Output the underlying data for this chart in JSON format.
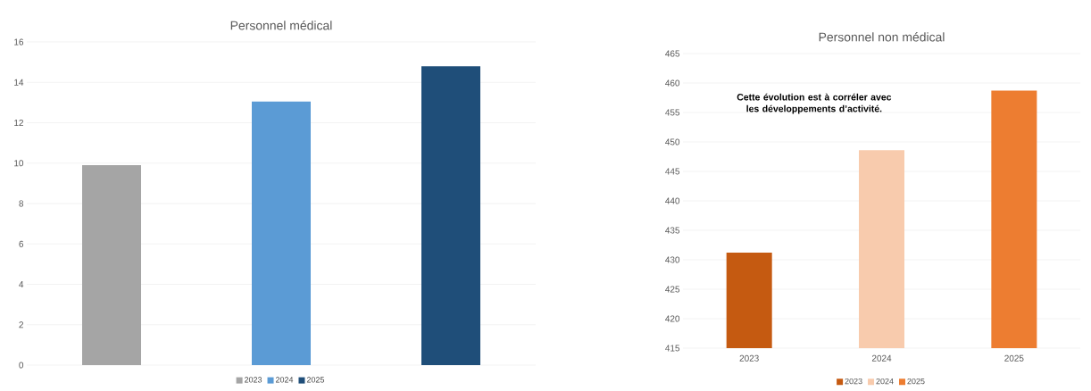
{
  "chart_data": [
    {
      "type": "bar",
      "title": "Personnel médical",
      "categories": [
        null,
        null,
        null
      ],
      "series": [
        {
          "name": "2023",
          "color": "#a5a5a5",
          "values": [
            9.9,
            null,
            null
          ]
        },
        {
          "name": "2024",
          "color": "#5b9bd5",
          "values": [
            null,
            13.05,
            null
          ]
        },
        {
          "name": "2025",
          "color": "#1f4e79",
          "values": [
            null,
            null,
            14.8
          ]
        }
      ],
      "ylim": [
        0,
        16
      ],
      "yticks": [
        0,
        2,
        4,
        6,
        8,
        10,
        12,
        14,
        16
      ],
      "grid": "y",
      "legend": "bottom"
    },
    {
      "type": "bar",
      "title": "Personnel non médical",
      "categories": [
        "2023",
        "2024",
        "2025"
      ],
      "series": [
        {
          "name": "2023",
          "color": "#c55a11",
          "values": [
            431.2,
            null,
            null
          ]
        },
        {
          "name": "2024",
          "color": "#f8cbad",
          "values": [
            null,
            448.6,
            null
          ]
        },
        {
          "name": "2025",
          "color": "#ed7d31",
          "values": [
            null,
            null,
            458.7
          ]
        }
      ],
      "ylim": [
        415,
        465
      ],
      "yticks": [
        415,
        420,
        425,
        430,
        435,
        440,
        445,
        450,
        455,
        460,
        465
      ],
      "grid": "y",
      "legend": "bottom",
      "annotations": [
        "Cette évolution est à corréler avec les développements d’activité."
      ]
    }
  ]
}
